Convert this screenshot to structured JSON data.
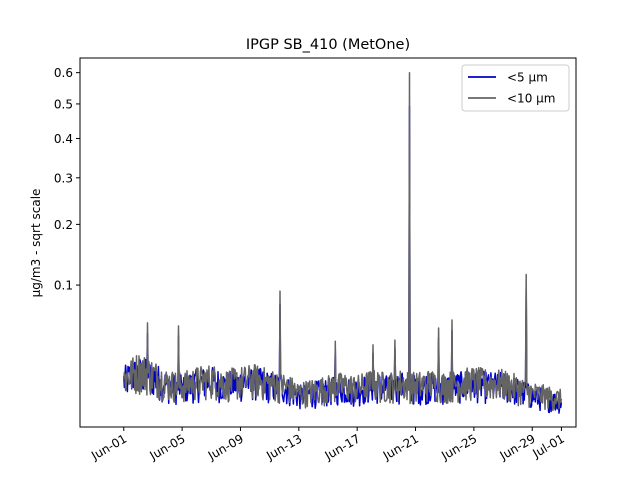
{
  "chart_data": {
    "type": "line",
    "title": "IPGP SB_410 (MetOne)",
    "xlabel": "",
    "ylabel": "µg/m3 - sqrt scale",
    "yscale": "sqrt",
    "xlim": [
      "2021-05-29",
      "2021-07-02"
    ],
    "ylim": [
      0.0001,
      0.65
    ],
    "x_ticks": [
      "Jun-01",
      "Jun-05",
      "Jun-09",
      "Jun-13",
      "Jun-17",
      "Jun-21",
      "Jun-25",
      "Jun-29",
      "Jul-01"
    ],
    "x_tick_dates": [
      "2021-06-01",
      "2021-06-05",
      "2021-06-09",
      "2021-06-13",
      "2021-06-17",
      "2021-06-21",
      "2021-06-25",
      "2021-06-29",
      "2021-07-01"
    ],
    "y_ticks": [
      0.1,
      0.2,
      0.3,
      0.4,
      0.5,
      0.6
    ],
    "y_tick_labels": [
      "0.1",
      "0.2",
      "0.3",
      "0.4",
      "0.5",
      "0.6"
    ],
    "grid": false,
    "legend": "top-right",
    "series": [
      {
        "name": "<5 µm",
        "color": "#0000cc",
        "x": [
          "2021-06-01",
          "2021-06-02",
          "2021-06-03",
          "2021-06-04",
          "2021-06-05",
          "2021-06-06",
          "2021-06-07",
          "2021-06-08",
          "2021-06-09",
          "2021-06-10",
          "2021-06-11",
          "2021-06-12",
          "2021-06-13",
          "2021-06-14",
          "2021-06-15",
          "2021-06-16",
          "2021-06-17",
          "2021-06-18",
          "2021-06-19",
          "2021-06-20",
          "2021-06-21",
          "2021-06-22",
          "2021-06-23",
          "2021-06-24",
          "2021-06-25",
          "2021-06-26",
          "2021-06-27",
          "2021-06-28",
          "2021-06-29",
          "2021-06-30",
          "2021-07-01"
        ],
        "values": [
          0.012,
          0.016,
          0.014,
          0.01,
          0.009,
          0.011,
          0.012,
          0.01,
          0.011,
          0.012,
          0.01,
          0.009,
          0.006,
          0.007,
          0.008,
          0.009,
          0.008,
          0.01,
          0.009,
          0.01,
          0.009,
          0.01,
          0.009,
          0.01,
          0.011,
          0.01,
          0.01,
          0.008,
          0.006,
          0.005,
          0.004
        ]
      },
      {
        "name": "<10 µm",
        "color": "#646464",
        "x": [
          "2021-06-01",
          "2021-06-02",
          "2021-06-03",
          "2021-06-04",
          "2021-06-05",
          "2021-06-06",
          "2021-06-07",
          "2021-06-08",
          "2021-06-09",
          "2021-06-10",
          "2021-06-11",
          "2021-06-12",
          "2021-06-13",
          "2021-06-14",
          "2021-06-15",
          "2021-06-16",
          "2021-06-17",
          "2021-06-18",
          "2021-06-19",
          "2021-06-20",
          "2021-06-21",
          "2021-06-22",
          "2021-06-23",
          "2021-06-24",
          "2021-06-25",
          "2021-06-26",
          "2021-06-27",
          "2021-06-28",
          "2021-06-29",
          "2021-06-30",
          "2021-07-01"
        ],
        "values": [
          0.013,
          0.018,
          0.015,
          0.011,
          0.01,
          0.012,
          0.013,
          0.011,
          0.012,
          0.013,
          0.011,
          0.01,
          0.007,
          0.008,
          0.009,
          0.01,
          0.009,
          0.011,
          0.01,
          0.011,
          0.01,
          0.011,
          0.01,
          0.011,
          0.012,
          0.011,
          0.011,
          0.009,
          0.007,
          0.006,
          0.005
        ]
      }
    ],
    "spikes": [
      {
        "x": "2021-06-02 15:00",
        "value": 0.055
      },
      {
        "x": "2021-06-04 18:00",
        "value": 0.052
      },
      {
        "x": "2021-06-11 17:00",
        "value": 0.092
      },
      {
        "x": "2021-06-15 12:00",
        "value": 0.038
      },
      {
        "x": "2021-06-18 02:00",
        "value": 0.035
      },
      {
        "x": "2021-06-19 14:00",
        "value": 0.039
      },
      {
        "x": "2021-06-20 14:00",
        "value": 0.6
      },
      {
        "x": "2021-06-22 14:00",
        "value": 0.05
      },
      {
        "x": "2021-06-23 12:00",
        "value": 0.058
      },
      {
        "x": "2021-06-28 14:00",
        "value": 0.115
      }
    ]
  }
}
